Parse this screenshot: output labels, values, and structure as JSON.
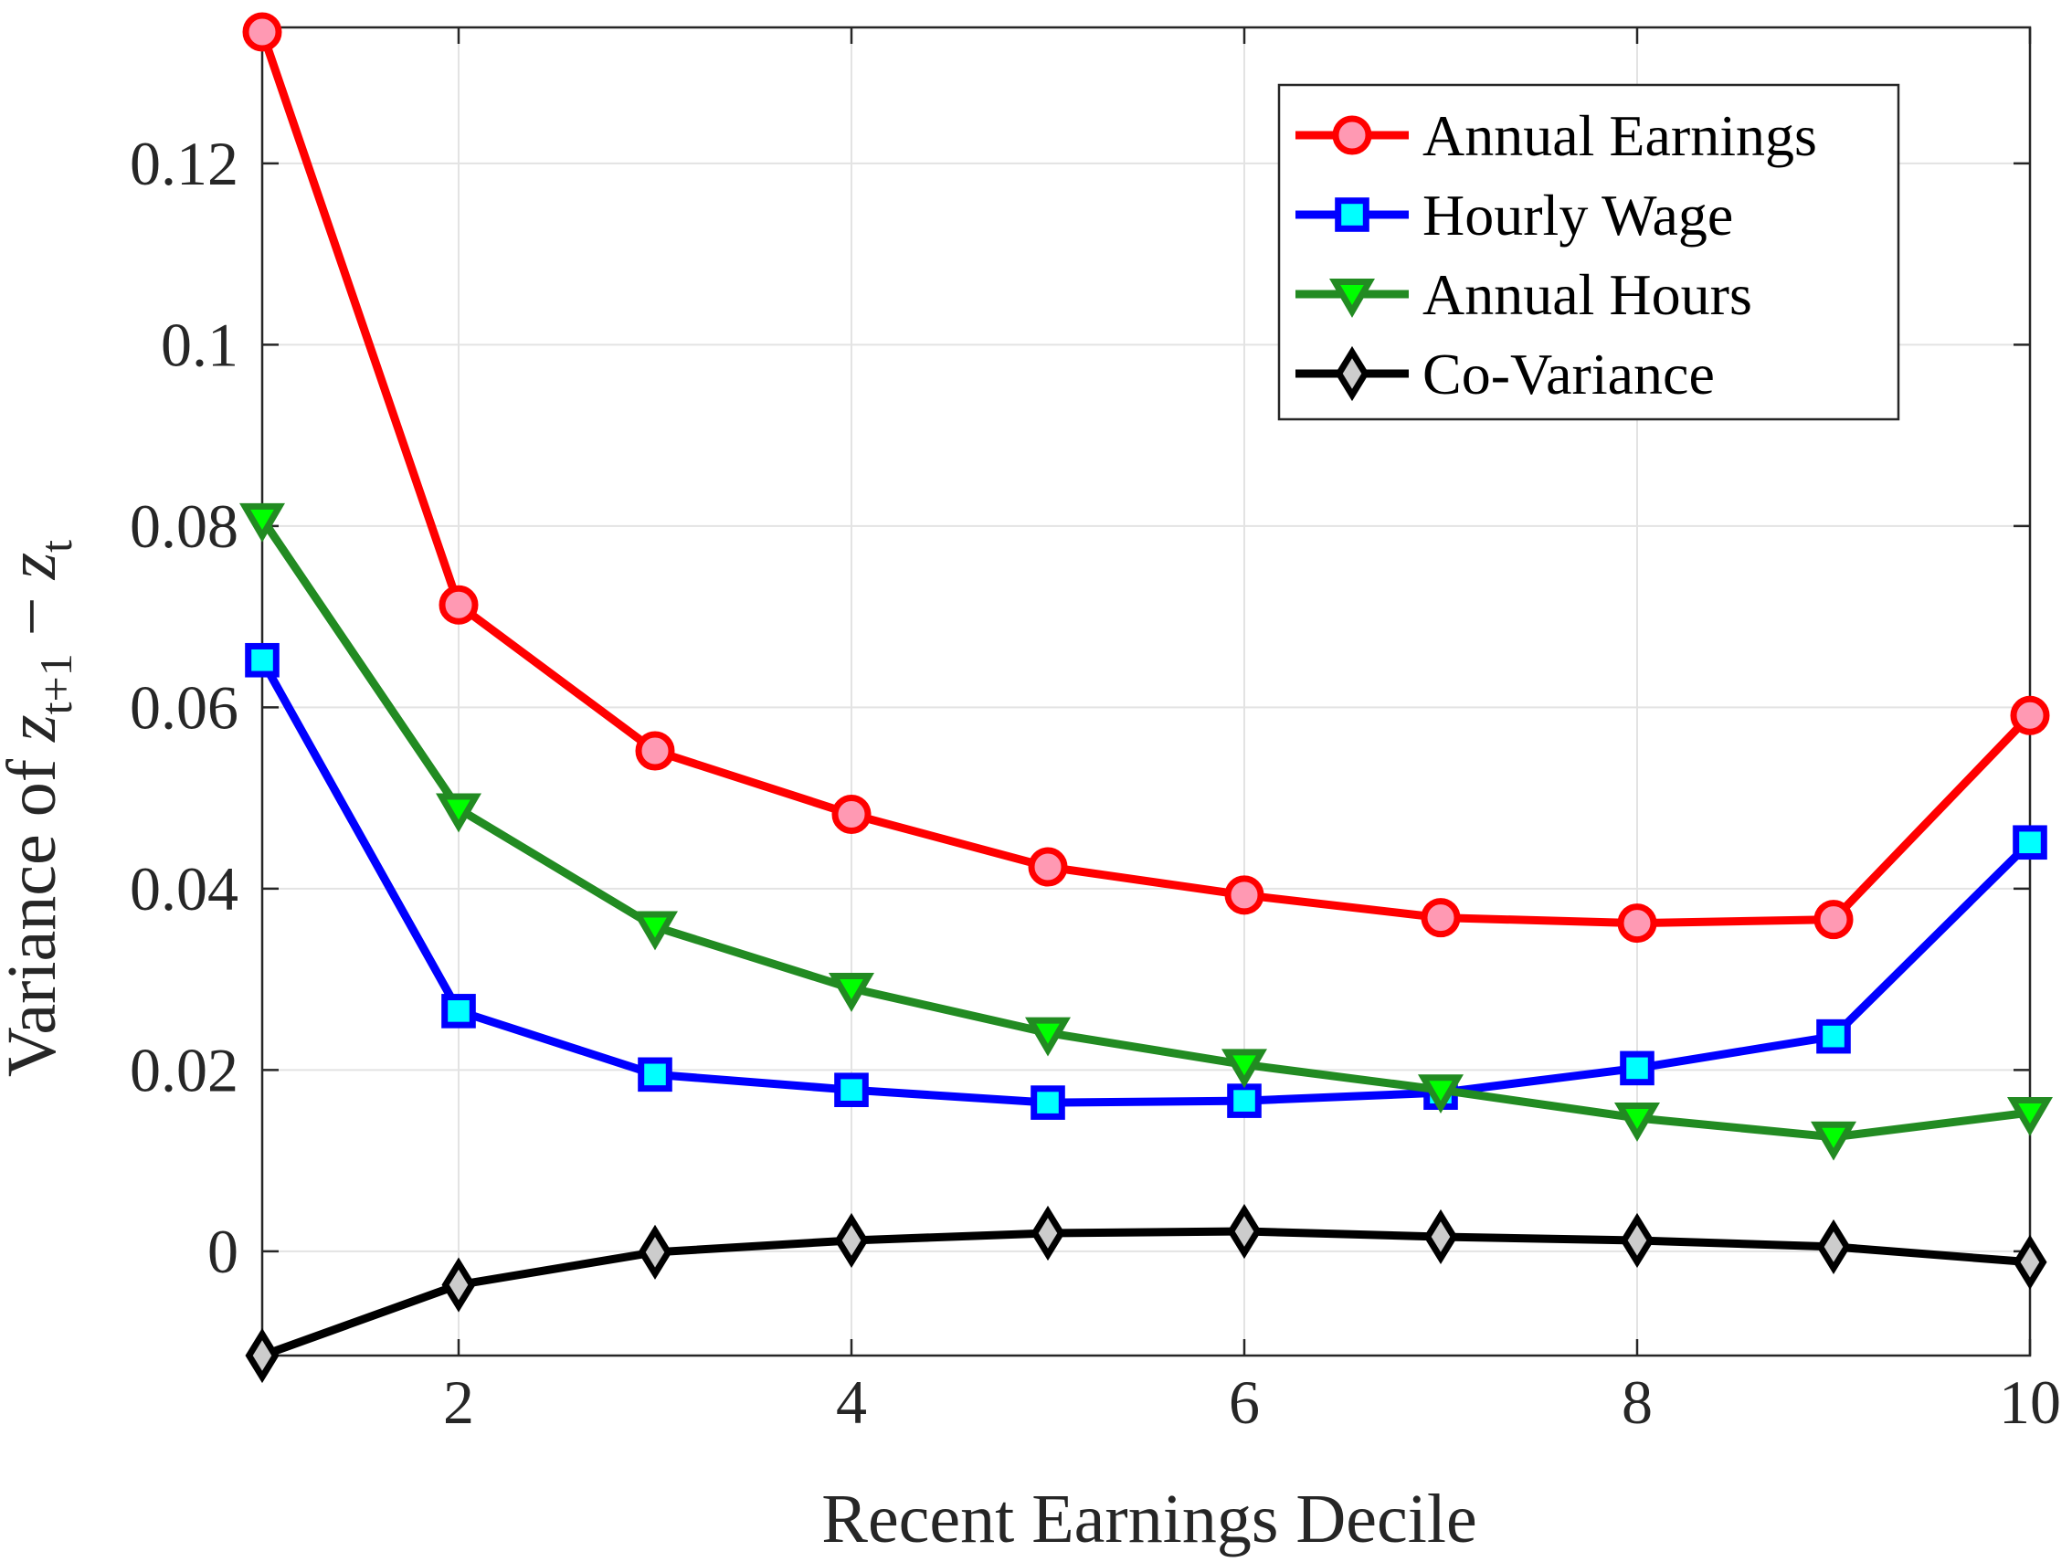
{
  "chart_data": {
    "type": "line",
    "xlabel": "Recent Earnings Decile",
    "ylabel": {
      "prefix": "Variance of ",
      "var1": "z",
      "sub1": "t+1",
      "minus": " − ",
      "var2": "z",
      "sub2": "t"
    },
    "xlim": [
      1,
      10
    ],
    "ylim": [
      -0.0115,
      0.135
    ],
    "xticks": [
      2,
      4,
      6,
      8,
      10
    ],
    "yticks": [
      0,
      0.02,
      0.04,
      0.06,
      0.08,
      0.1,
      0.12
    ],
    "xtick_labels": [
      "2",
      "4",
      "6",
      "8",
      "10"
    ],
    "ytick_labels": [
      "0",
      "0.02",
      "0.04",
      "0.06",
      "0.08",
      "0.1",
      "0.12"
    ],
    "grid": true,
    "legend_position": "top-right",
    "x": [
      1,
      2,
      3,
      4,
      5,
      6,
      7,
      8,
      9,
      10
    ],
    "series": [
      {
        "name": "Annual Earnings",
        "color": "#ff0000",
        "marker": "circle",
        "marker_fill": "#ff99b3",
        "values": [
          0.1345,
          0.0713,
          0.0552,
          0.0482,
          0.0424,
          0.0393,
          0.0368,
          0.0362,
          0.0366,
          0.0591
        ]
      },
      {
        "name": "Hourly Wage",
        "color": "#0000ff",
        "marker": "square",
        "marker_fill": "#00ffff",
        "values": [
          0.0652,
          0.0265,
          0.0195,
          0.0178,
          0.0164,
          0.0166,
          0.0175,
          0.0202,
          0.0237,
          0.0451
        ]
      },
      {
        "name": "Annual Hours",
        "color": "#228b22",
        "marker": "triangle-down",
        "marker_fill": "#00ff00",
        "values": [
          0.0808,
          0.0488,
          0.0358,
          0.029,
          0.0241,
          0.0206,
          0.0178,
          0.0147,
          0.0126,
          0.0153
        ]
      },
      {
        "name": "Co-Variance",
        "color": "#000000",
        "marker": "diamond",
        "marker_fill": "#cccccc",
        "values": [
          -0.0115,
          -0.0037,
          -0.0001,
          0.0012,
          0.002,
          0.0022,
          0.0016,
          0.0012,
          0.0005,
          -0.0012
        ]
      }
    ]
  }
}
